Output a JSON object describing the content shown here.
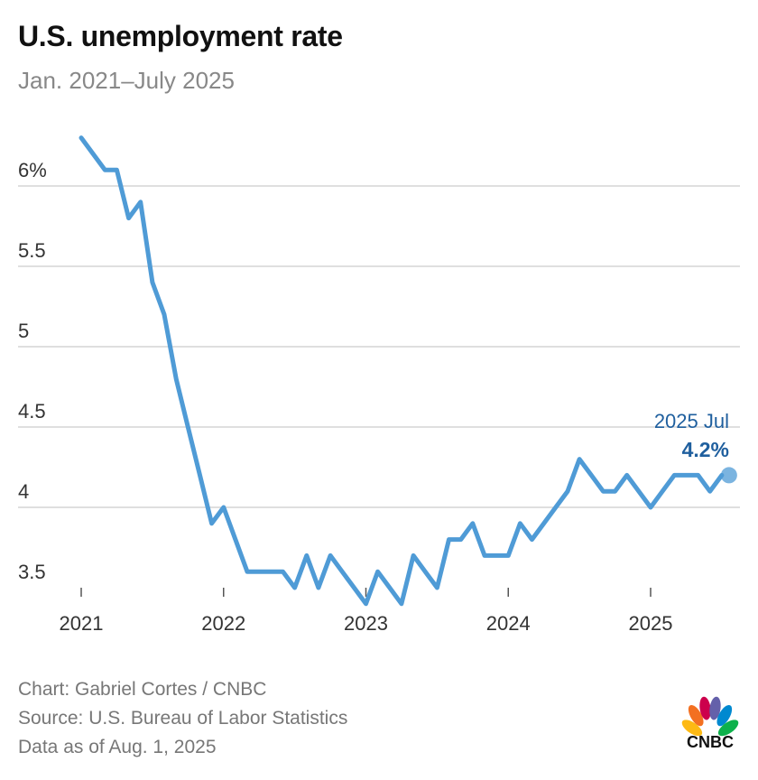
{
  "header": {
    "title": "U.S. unemployment rate",
    "subtitle": "Jan. 2021–July 2025"
  },
  "footer": {
    "credit": "Chart: Gabriel Cortes / CNBC",
    "source": "Source: U.S. Bureau of Labor Statistics",
    "asof": "Data as of Aug. 1, 2025"
  },
  "logo": {
    "text": "CNBC"
  },
  "colors": {
    "line": "#4f9bd6",
    "grid": "#cccccc",
    "annotation": "#1f5f9e",
    "text": "#333333"
  },
  "chart_data": {
    "type": "line",
    "xlabel": "",
    "ylabel": "",
    "ylim": [
      3.4,
      6.3
    ],
    "yticks": [
      {
        "value": 3.5,
        "label": "3.5"
      },
      {
        "value": 4,
        "label": "4"
      },
      {
        "value": 4.5,
        "label": "4.5"
      },
      {
        "value": 5,
        "label": "5"
      },
      {
        "value": 5.5,
        "label": "5.5"
      },
      {
        "value": 6,
        "label": "6%"
      }
    ],
    "xticks": [
      {
        "value": "2021-01",
        "label": "2021"
      },
      {
        "value": "2022-01",
        "label": "2022"
      },
      {
        "value": "2023-01",
        "label": "2023"
      },
      {
        "value": "2024-01",
        "label": "2024"
      },
      {
        "value": "2025-01",
        "label": "2025"
      }
    ],
    "grid": true,
    "series": [
      {
        "x": [
          "2021-01",
          "2021-02",
          "2021-03",
          "2021-04",
          "2021-05",
          "2021-06",
          "2021-07",
          "2021-08",
          "2021-09",
          "2021-10",
          "2021-11",
          "2021-12",
          "2022-01",
          "2022-02",
          "2022-03",
          "2022-04",
          "2022-05",
          "2022-06",
          "2022-07",
          "2022-08",
          "2022-09",
          "2022-10",
          "2022-11",
          "2022-12",
          "2023-01",
          "2023-02",
          "2023-03",
          "2023-04",
          "2023-05",
          "2023-06",
          "2023-07",
          "2023-08",
          "2023-09",
          "2023-10",
          "2023-11",
          "2023-12",
          "2024-01",
          "2024-02",
          "2024-03",
          "2024-04",
          "2024-05",
          "2024-06",
          "2024-07",
          "2024-08",
          "2024-09",
          "2024-10",
          "2024-11",
          "2024-12",
          "2025-01",
          "2025-02",
          "2025-03",
          "2025-04",
          "2025-05",
          "2025-06",
          "2025-07"
        ],
        "values": [
          6.3,
          6.2,
          6.1,
          6.1,
          5.8,
          5.9,
          5.4,
          5.2,
          4.8,
          4.5,
          4.2,
          3.9,
          4.0,
          3.8,
          3.6,
          3.6,
          3.6,
          3.6,
          3.5,
          3.7,
          3.5,
          3.7,
          3.6,
          3.5,
          3.4,
          3.6,
          3.5,
          3.4,
          3.7,
          3.6,
          3.5,
          3.8,
          3.8,
          3.9,
          3.7,
          3.7,
          3.7,
          3.9,
          3.8,
          3.9,
          4.0,
          4.1,
          4.3,
          4.2,
          4.1,
          4.1,
          4.2,
          4.1,
          4.0,
          4.1,
          4.2,
          4.2,
          4.2,
          4.1,
          4.2
        ]
      }
    ],
    "annotation": {
      "label": "2025 Jul",
      "value_label": "4.2%"
    }
  }
}
